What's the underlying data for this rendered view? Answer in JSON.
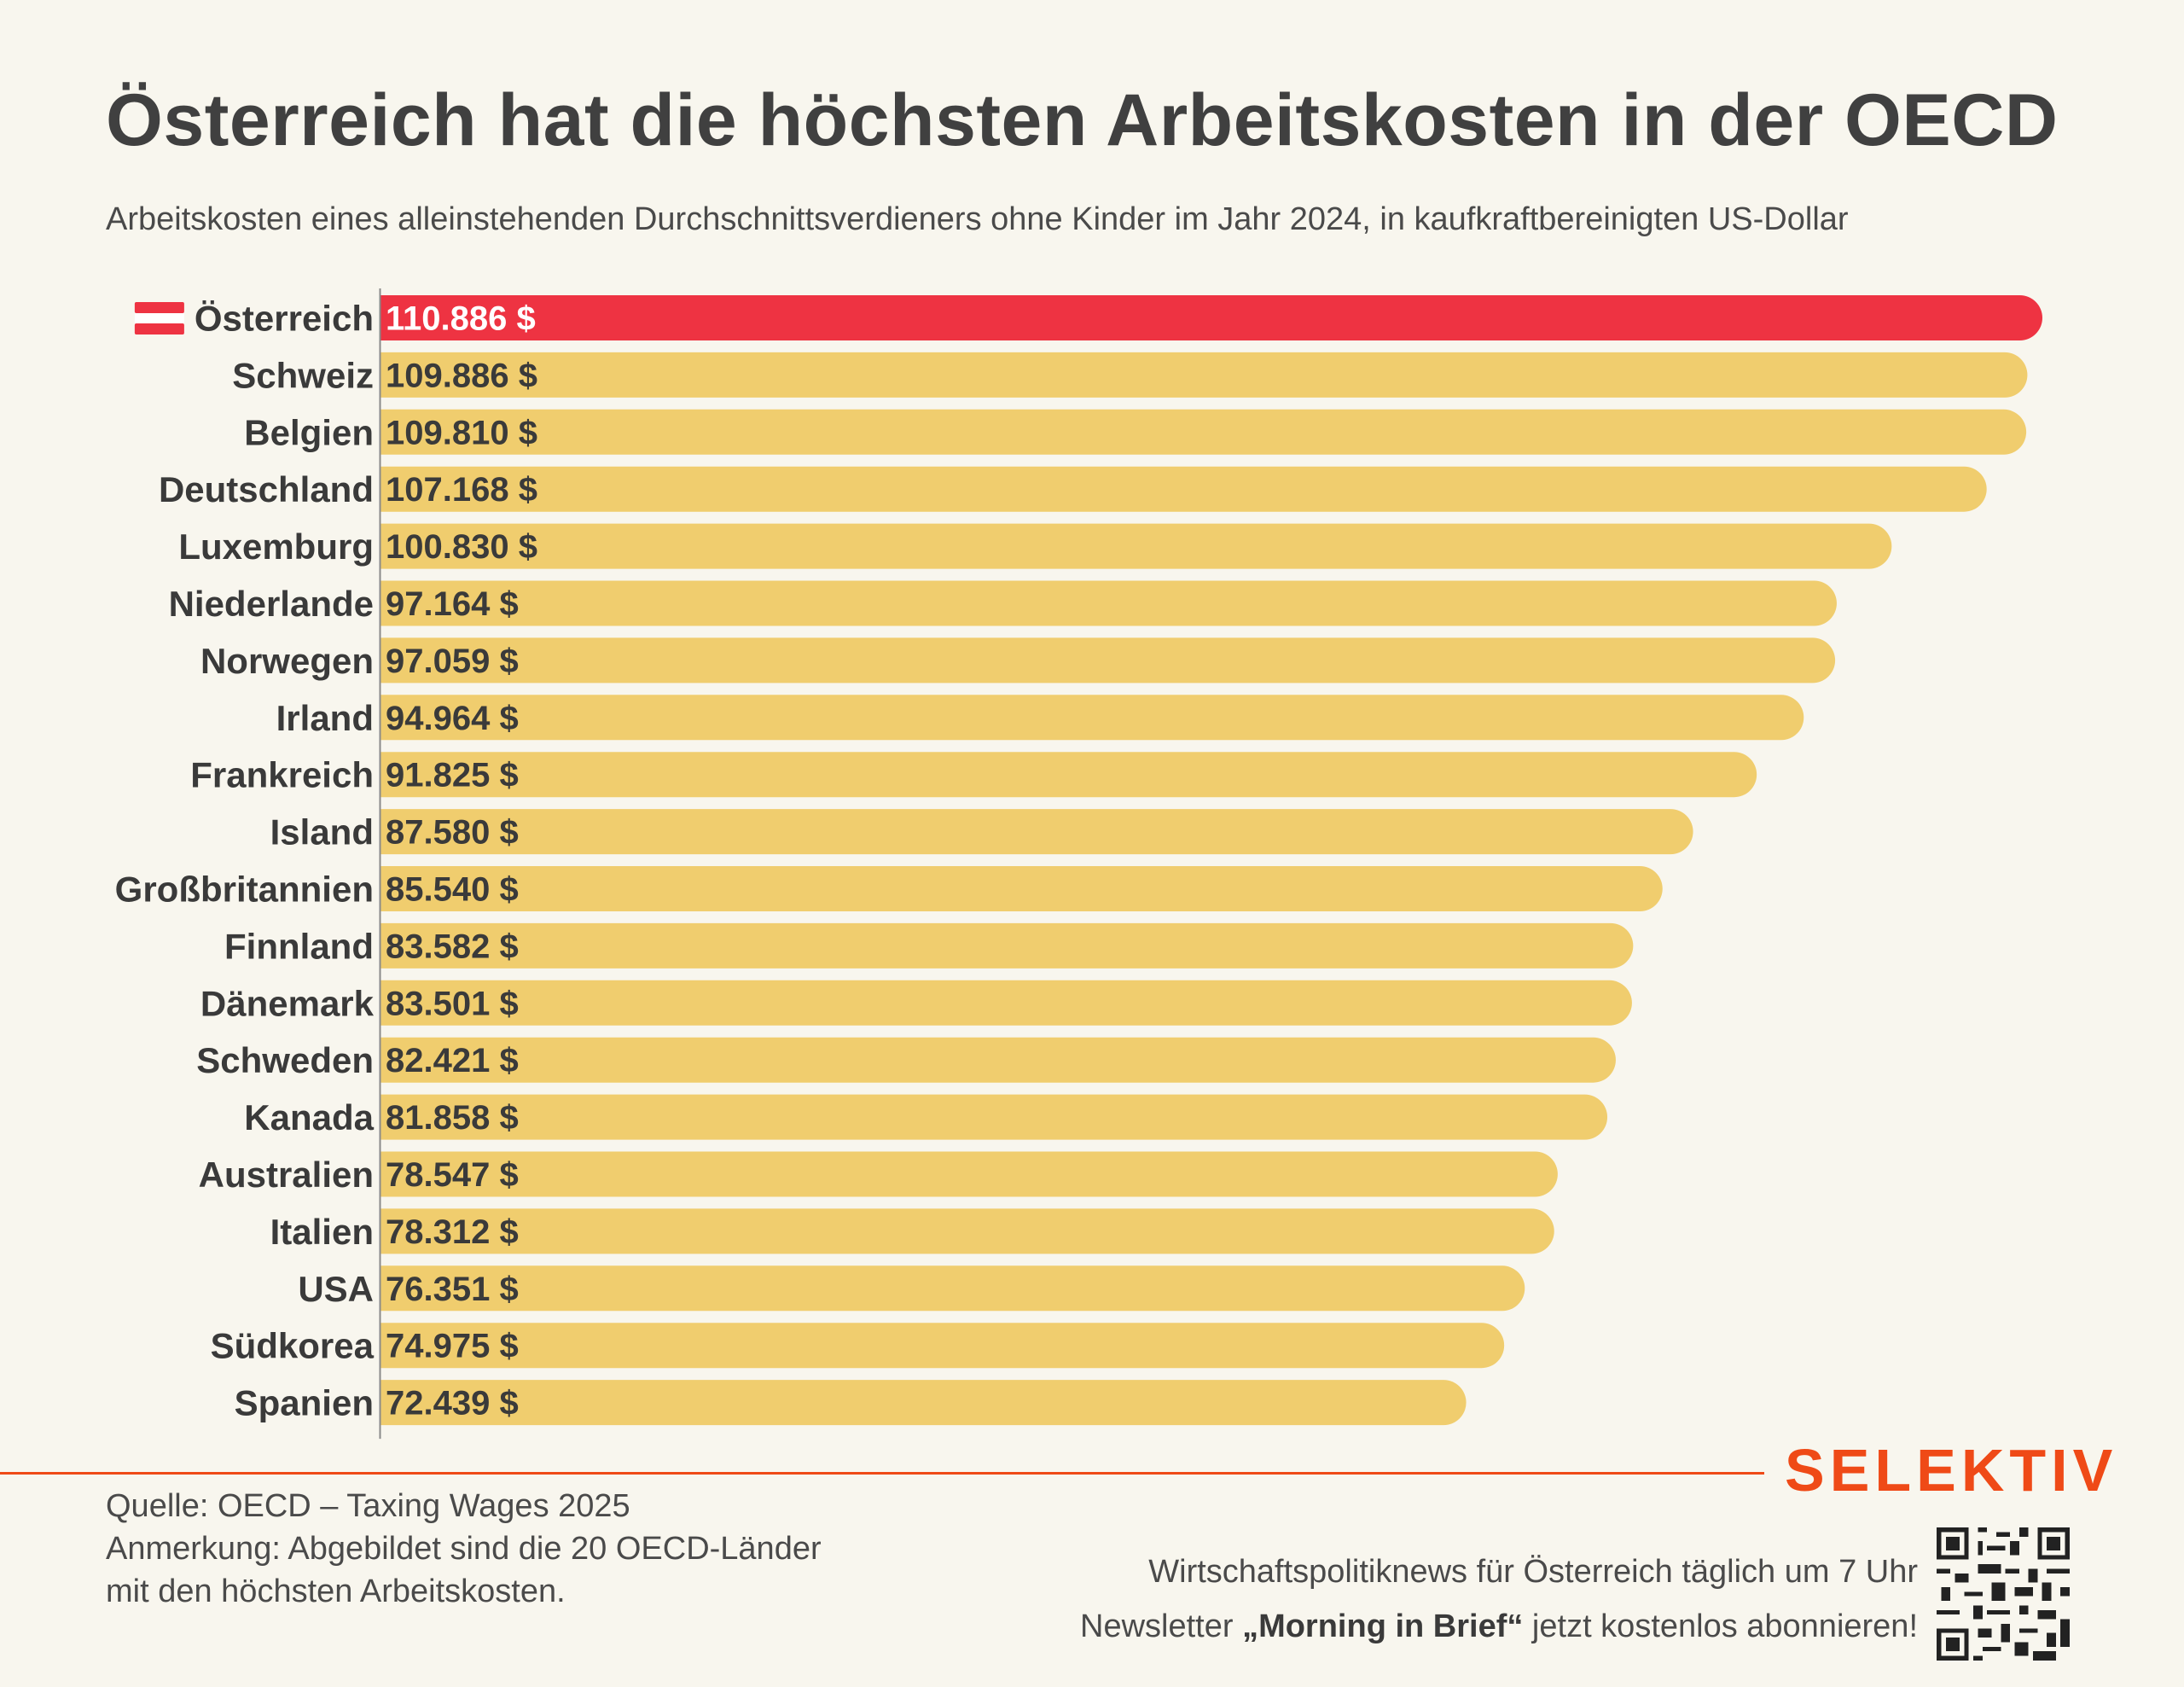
{
  "title": "Österreich hat die höchsten Arbeitskosten in der OECD",
  "subtitle": "Arbeitskosten eines alleinstehenden Durchschnittsverdieners ohne Kinder im Jahr 2024, in kaufkraftbereinigten US-Dollar",
  "brand": "SELEKTIV",
  "footer": {
    "source": "Quelle: OECD – Taxing Wages 2025",
    "note_line1": "Anmerkung: Abgebildet sind die 20 OECD-Länder",
    "note_line2": "mit den höchsten Arbeitskosten."
  },
  "promo": {
    "line1": "Wirtschaftspolitiknews für Österreich täglich um 7 Uhr",
    "line2_before": "Newsletter ",
    "line2_bold": "„Morning in Brief“",
    "line2_after": " jetzt kostenlos abonnieren!"
  },
  "icons": {
    "flag": "austria-flag-icon",
    "qr": "qr-code-icon"
  },
  "colors": {
    "highlight": "#ee3342",
    "bar": "#f0cd6e",
    "brand": "#ef4a17",
    "background": "#f8f6ee"
  },
  "chart_data": {
    "type": "bar",
    "orientation": "horizontal",
    "categories": [
      "Österreich",
      "Schweiz",
      "Belgien",
      "Deutschland",
      "Luxemburg",
      "Niederlande",
      "Norwegen",
      "Irland",
      "Frankreich",
      "Island",
      "Großbritannien",
      "Finnland",
      "Dänemark",
      "Schweden",
      "Kanada",
      "Australien",
      "Italien",
      "USA",
      "Südkorea",
      "Spanien"
    ],
    "values": [
      110886,
      109886,
      109810,
      107168,
      100830,
      97164,
      97059,
      94964,
      91825,
      87580,
      85540,
      83582,
      83501,
      82421,
      81858,
      78547,
      78312,
      76351,
      74975,
      72439
    ],
    "value_labels": [
      "110.886 $",
      "109.886 $",
      "109.810 $",
      "107.168 $",
      "100.830 $",
      "97.164 $",
      "97.059 $",
      "94.964 $",
      "91.825 $",
      "87.580 $",
      "85.540 $",
      "83.582 $",
      "83.501 $",
      "82.421 $",
      "81.858 $",
      "78.547 $",
      "78.312 $",
      "76.351 $",
      "74.975 $",
      "72.439 $"
    ],
    "highlight_category": "Österreich",
    "xlim": [
      0,
      110886
    ]
  }
}
